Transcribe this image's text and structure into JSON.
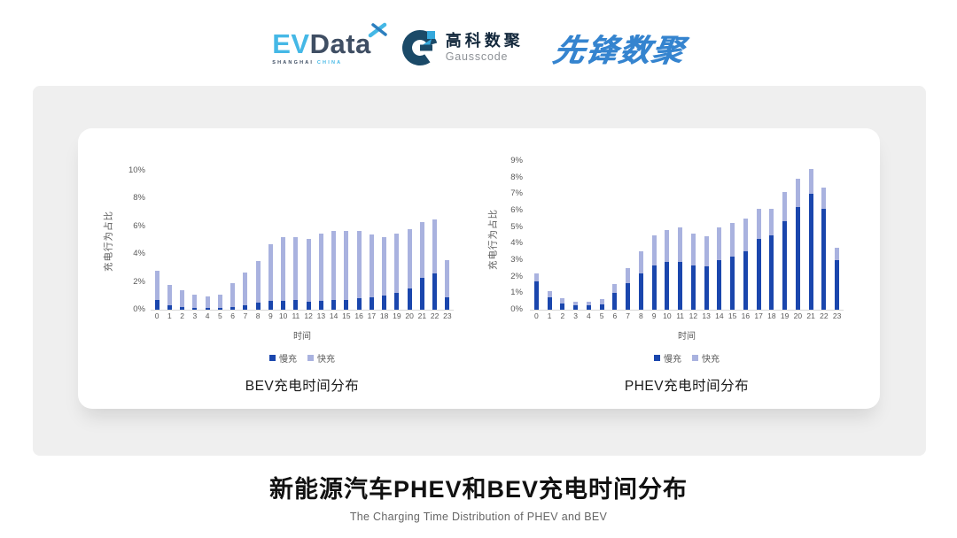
{
  "header": {
    "evdata": {
      "ev": "EV",
      "data": "Data",
      "sub_left": "SHANGHAI",
      "sub_right": "CHINA"
    },
    "gausscode": {
      "cn": "高科数聚",
      "en": "Gausscode"
    },
    "pioneer": {
      "text": "先锋数聚"
    }
  },
  "colors": {
    "slow_series": "#1A46AD",
    "fast_series": "#A9B2DF",
    "evdata_cyan": "#45B8E6",
    "evdata_dark": "#3F4E63",
    "gauss_navy": "#1B4A68",
    "gauss_cyan": "#35A8DC",
    "pioneer_blue": "#3584CF",
    "panel_gray": "#EFEFEF",
    "tick_gray": "#595959"
  },
  "chart_data": [
    {
      "type": "bar",
      "stacked": true,
      "title": "BEV充电时间分布",
      "xlabel": "时间",
      "ylabel": "充电行为占比",
      "ylim": [
        0,
        10
      ],
      "yticks": [
        "10%",
        "8%",
        "6%",
        "4%",
        "2%",
        "0%"
      ],
      "grid": false,
      "legend_position": "bottom",
      "categories": [
        "0",
        "1",
        "2",
        "3",
        "4",
        "5",
        "6",
        "7",
        "8",
        "9",
        "10",
        "11",
        "12",
        "13",
        "14",
        "15",
        "16",
        "17",
        "18",
        "19",
        "20",
        "21",
        "22",
        "23"
      ],
      "series": [
        {
          "name": "慢充",
          "color": "#1A46AD",
          "values": [
            0.7,
            0.35,
            0.2,
            0.15,
            0.1,
            0.1,
            0.2,
            0.35,
            0.5,
            0.65,
            0.65,
            0.7,
            0.55,
            0.65,
            0.7,
            0.7,
            0.85,
            0.9,
            1.0,
            1.2,
            1.5,
            2.3,
            2.6,
            0.9
          ]
        },
        {
          "name": "快充",
          "color": "#A9B2DF",
          "values": [
            2.1,
            1.45,
            1.2,
            0.95,
            0.85,
            1.0,
            1.7,
            2.3,
            3.0,
            4.05,
            4.55,
            4.5,
            4.55,
            4.85,
            5.0,
            5.0,
            4.85,
            4.5,
            4.2,
            4.3,
            4.3,
            4.0,
            3.9,
            2.65
          ]
        }
      ]
    },
    {
      "type": "bar",
      "stacked": true,
      "title": "PHEV充电时间分布",
      "xlabel": "时间",
      "ylabel": "充电行为占比",
      "ylim": [
        0,
        9
      ],
      "yticks": [
        "9%",
        "8%",
        "7%",
        "6%",
        "5%",
        "4%",
        "3%",
        "2%",
        "1%",
        "0%"
      ],
      "grid": false,
      "legend_position": "bottom",
      "categories": [
        "0",
        "1",
        "2",
        "3",
        "4",
        "5",
        "6",
        "7",
        "8",
        "9",
        "10",
        "11",
        "12",
        "13",
        "14",
        "15",
        "16",
        "17",
        "18",
        "19",
        "20",
        "21",
        "22",
        "23"
      ],
      "series": [
        {
          "name": "慢充",
          "color": "#1A46AD",
          "values": [
            1.7,
            0.75,
            0.4,
            0.25,
            0.25,
            0.3,
            1.0,
            1.6,
            2.2,
            2.7,
            2.9,
            2.9,
            2.7,
            2.6,
            3.0,
            3.2,
            3.55,
            4.3,
            4.5,
            5.35,
            6.2,
            7.0,
            6.1,
            3.0
          ]
        },
        {
          "name": "快充",
          "color": "#A9B2DF",
          "values": [
            0.5,
            0.4,
            0.3,
            0.25,
            0.25,
            0.35,
            0.55,
            0.9,
            1.35,
            1.8,
            1.9,
            2.1,
            1.9,
            1.85,
            2.0,
            2.05,
            1.95,
            1.8,
            1.6,
            1.8,
            1.75,
            1.5,
            1.3,
            0.75
          ]
        }
      ]
    }
  ],
  "footer": {
    "title": "新能源汽车PHEV和BEV充电时间分布",
    "subtitle": "The Charging Time Distribution of PHEV and BEV"
  }
}
